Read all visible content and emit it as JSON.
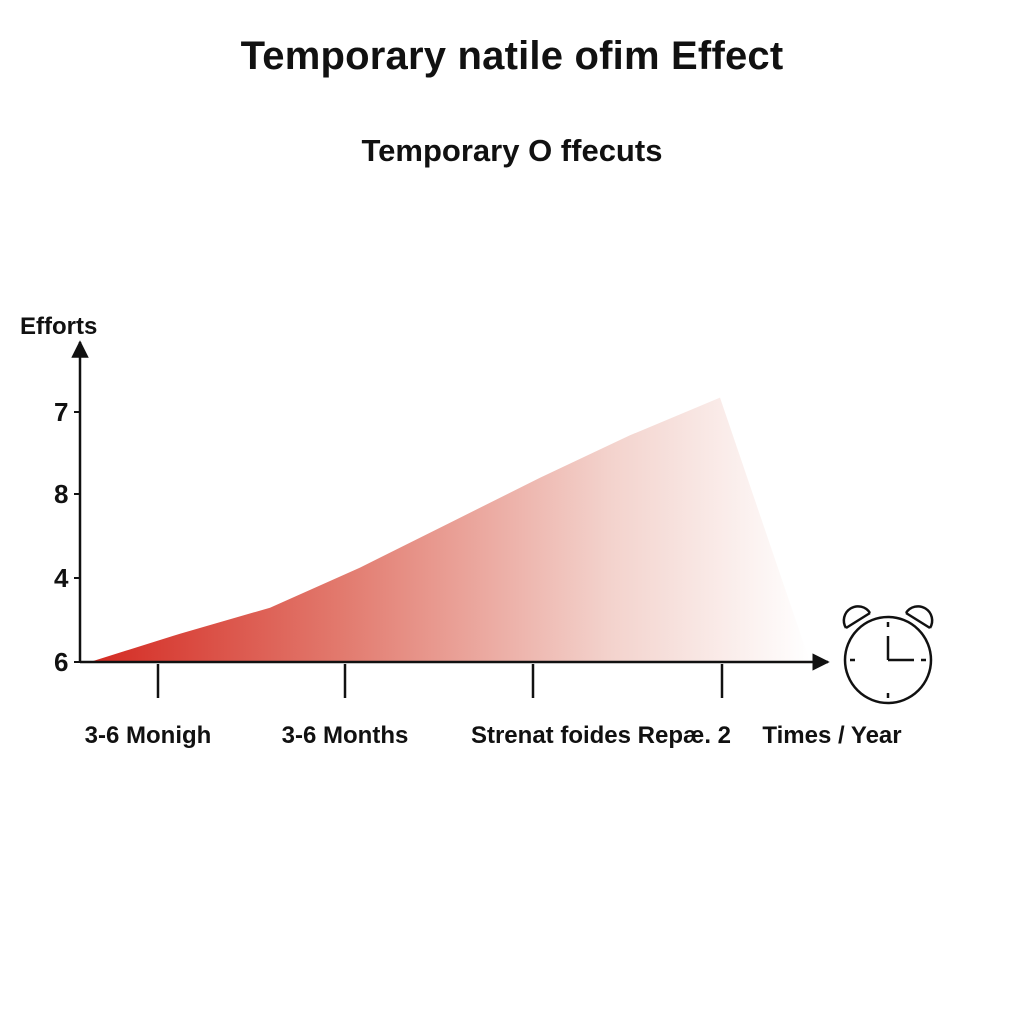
{
  "chart_data": {
    "type": "area",
    "title": "Temporary natile ofim Effect",
    "subtitle": "Temporary O ffecuts",
    "ylabel": "Efforts",
    "xlabel": "",
    "y_tick_labels": [
      "7",
      "8",
      "4",
      "6"
    ],
    "x_tick_labels": [
      "3-6 Monigh",
      "3-6 Months",
      "Strenat foides Repæ. 2",
      "Times / Year"
    ],
    "x": [
      0,
      1,
      2,
      3,
      4,
      5,
      6,
      7
    ],
    "y": [
      0,
      0.6,
      1.15,
      2.0,
      2.95,
      3.9,
      4.8,
      5.6
    ],
    "ylim": [
      0,
      7.2
    ],
    "xlim": [
      0,
      8
    ],
    "fill_colors": [
      "#d42a22",
      "#e27a6e",
      "#f3d2cc",
      "#ffffff"
    ],
    "fade_direction": "left-to-right",
    "grid": false,
    "legend": "none"
  },
  "decorations": {
    "icon": "alarm-clock-icon"
  }
}
